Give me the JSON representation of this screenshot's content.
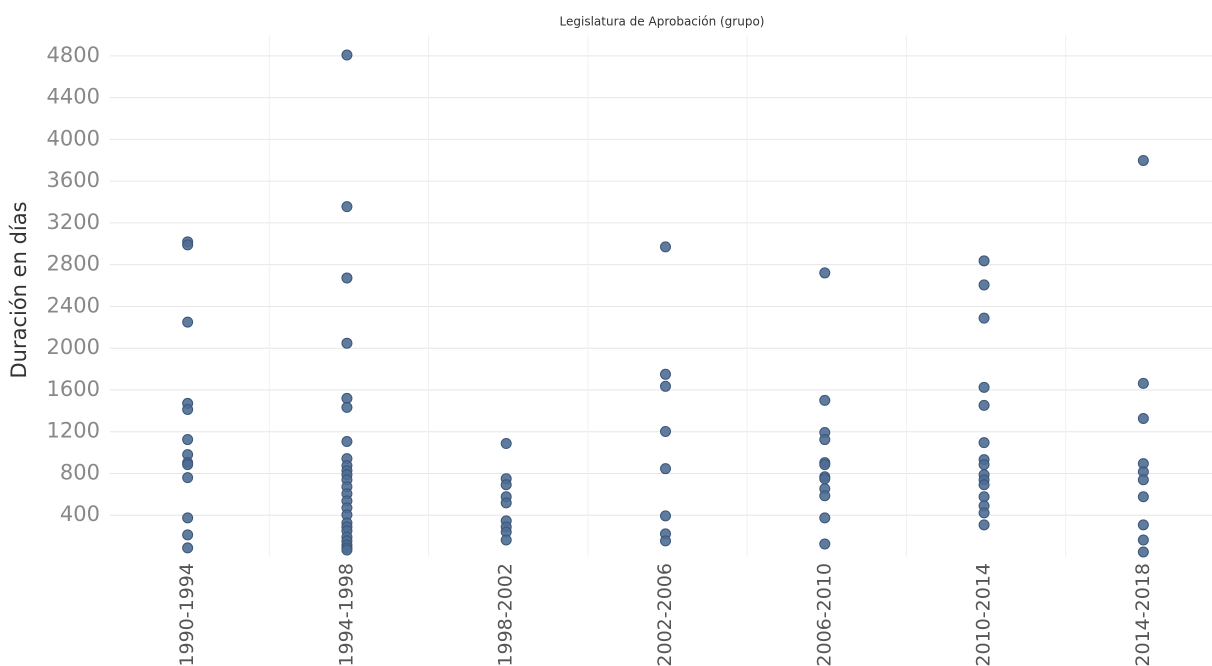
{
  "chart_data": {
    "type": "strip",
    "title": "Legislatura de Aprobación (grupo)",
    "y_label": "Duración en días",
    "categories": [
      "1990-1994",
      "1994-1998",
      "1998-2002",
      "2002-2006",
      "2006-2010",
      "2010-2014",
      "2014-2018"
    ],
    "values": [
      [
        3019,
        2990,
        2250,
        1471,
        1413,
        1125,
        981,
        904,
        885,
        760,
        375,
        212,
        87
      ],
      [
        4808,
        3356,
        2673,
        2048,
        1519,
        1433,
        1106,
        942,
        875,
        827,
        788,
        740,
        673,
        606,
        538,
        471,
        404,
        327,
        288,
        250,
        192,
        154,
        115,
        87,
        67
      ],
      [
        1087,
        750,
        692,
        577,
        519,
        346,
        288,
        240,
        163
      ],
      [
        2971,
        1750,
        1635,
        1202,
        846,
        394,
        221,
        154
      ],
      [
        2721,
        1500,
        1192,
        1125,
        904,
        885,
        769,
        750,
        654,
        587,
        375,
        125
      ],
      [
        2837,
        2606,
        2288,
        1625,
        1452,
        1096,
        933,
        885,
        788,
        740,
        692,
        577,
        490,
        423,
        308
      ],
      [
        3798,
        1663,
        1327,
        894,
        817,
        740,
        577,
        308,
        163,
        48
      ]
    ],
    "color": "#4e6d94",
    "ylim": [
      0,
      5000
    ],
    "yticks": [
      400,
      800,
      1200,
      1600,
      2000,
      2400,
      2800,
      3200,
      3600,
      4000,
      4400,
      4800
    ],
    "grid": true
  }
}
